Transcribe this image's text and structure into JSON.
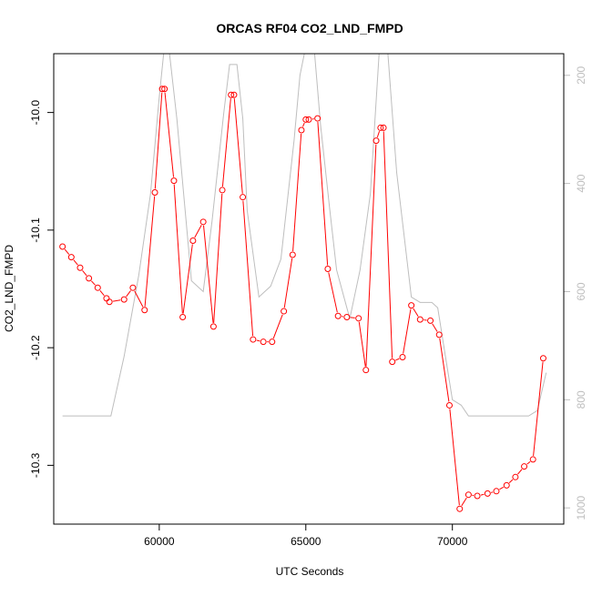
{
  "chart_data": {
    "type": "line",
    "title": "ORCAS RF04 CO2_LND_FMPD",
    "xlabel": "UTC Seconds",
    "ylabel": "CO2_LND_FMPD",
    "xlim": [
      56400,
      73800
    ],
    "ylim": [
      -10.35,
      -9.95
    ],
    "y2lim": [
      1030,
      160
    ],
    "x_ticks": [
      60000,
      65000,
      70000
    ],
    "x_tick_labels": [
      "60000",
      "65000",
      "70000"
    ],
    "y_ticks": [
      -10.0,
      -10.1,
      -10.2,
      -10.3
    ],
    "y_tick_labels": [
      "-10.0",
      "-10.1",
      "-10.2",
      "-10.3"
    ],
    "y2_ticks": [
      200,
      400,
      600,
      800,
      1000
    ],
    "y2_tick_labels": [
      "200",
      "400",
      "600",
      "800",
      "1000"
    ],
    "colors": {
      "primary": "#ff0000",
      "secondary": "#bebebe",
      "axis": "#000000",
      "secondary_axis": "#bebebe"
    },
    "series": [
      {
        "axis": "left",
        "style": "points-and-lines",
        "x": [
          56700,
          57000,
          57300,
          57600,
          57900,
          58200,
          58300,
          58800,
          59100,
          59500,
          59850,
          60100,
          60180,
          60500,
          60800,
          61150,
          61500,
          61850,
          62150,
          62450,
          62550,
          62850,
          63200,
          63550,
          63850,
          64250,
          64550,
          64850,
          65000,
          65100,
          65400,
          65750,
          66100,
          66400,
          66800,
          67050,
          67400,
          67550,
          67650,
          67950,
          68300,
          68600,
          68900,
          69250,
          69550,
          69900,
          70250,
          70550,
          70850,
          71200,
          71500,
          71850,
          72150,
          72450,
          72750,
          73100
        ],
        "y": [
          -10.114,
          -10.123,
          -10.132,
          -10.141,
          -10.149,
          -10.158,
          -10.161,
          -10.159,
          -10.149,
          -10.168,
          -10.068,
          -9.98,
          -9.98,
          -10.058,
          -10.174,
          -10.109,
          -10.093,
          -10.182,
          -10.066,
          -9.985,
          -9.985,
          -10.072,
          -10.193,
          -10.195,
          -10.195,
          -10.169,
          -10.121,
          -10.015,
          -10.006,
          -10.006,
          -10.005,
          -10.133,
          -10.173,
          -10.174,
          -10.175,
          -10.219,
          -10.024,
          -10.013,
          -10.013,
          -10.212,
          -10.208,
          -10.164,
          -10.176,
          -10.177,
          -10.189,
          -10.249,
          -10.337,
          -10.325,
          -10.326,
          -10.324,
          -10.322,
          -10.317,
          -10.31,
          -10.301,
          -10.295,
          -10.209
        ]
      },
      {
        "axis": "right",
        "style": "line",
        "x": [
          56700,
          58000,
          58350,
          58800,
          59300,
          59700,
          60000,
          60150,
          60350,
          60600,
          61100,
          61500,
          61800,
          62200,
          62400,
          62650,
          62850,
          63000,
          63400,
          63800,
          64150,
          64600,
          64800,
          64950,
          65300,
          65500,
          65800,
          66050,
          66500,
          66850,
          67200,
          67350,
          67500,
          67800,
          68100,
          68600,
          68900,
          69300,
          69500,
          70000,
          70300,
          70550,
          72600,
          72900,
          73200
        ],
        "y": [
          830,
          830,
          830,
          720,
          570,
          420,
          240,
          160,
          160,
          280,
          580,
          600,
          470,
          270,
          180,
          180,
          280,
          450,
          610,
          590,
          540,
          320,
          200,
          160,
          160,
          290,
          440,
          560,
          650,
          560,
          420,
          290,
          160,
          160,
          380,
          610,
          620,
          620,
          630,
          800,
          810,
          830,
          830,
          820,
          750
        ]
      }
    ]
  }
}
